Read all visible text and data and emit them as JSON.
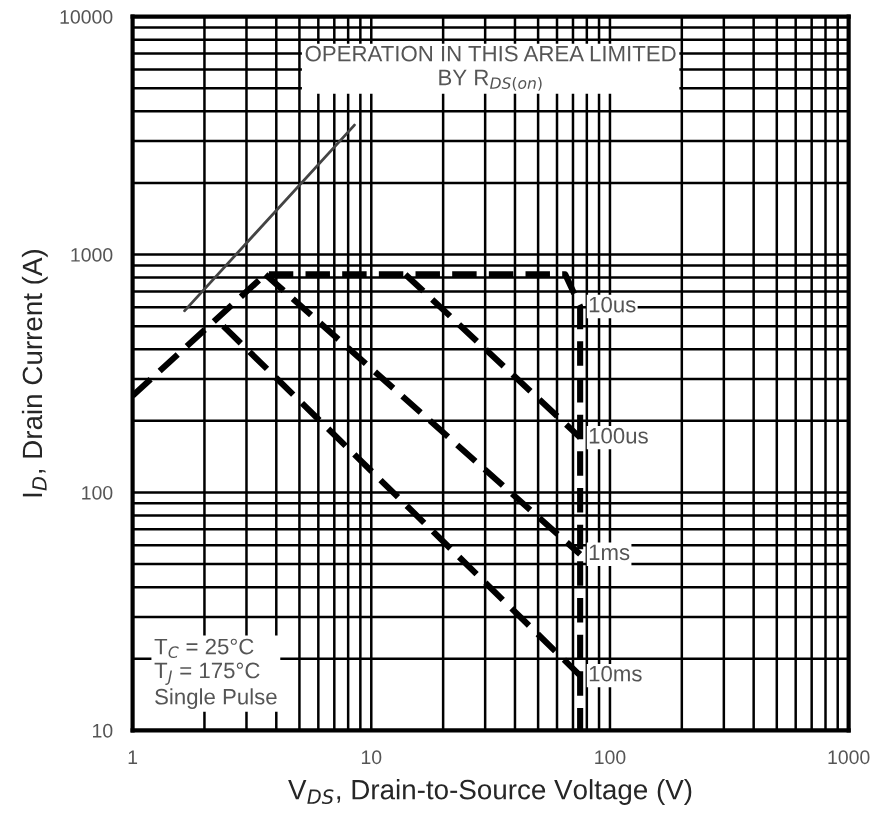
{
  "chart_data": {
    "type": "line",
    "xlabel": "V$_{DS}$, Drain-to-Source Voltage (V)",
    "ylabel": "I$_{D}$, Drain Current (A)",
    "log": "xy",
    "xlim": [
      1,
      1000
    ],
    "ylim": [
      10,
      10000
    ],
    "xticks": [
      1,
      10,
      100,
      1000
    ],
    "yticks": [
      10,
      100,
      1000,
      10000
    ],
    "grid": true,
    "series": [
      {
        "name": "10us",
        "color": "#000000",
        "line_style": "dashed",
        "x": [
          1,
          3.6,
          65,
          75,
          75
        ],
        "values": [
          255,
          825,
          825,
          605,
          10
        ]
      },
      {
        "name": "100us",
        "color": "#000000",
        "line_style": "dashed",
        "x": [
          13.9,
          75
        ],
        "values": [
          825,
          170
        ]
      },
      {
        "name": "1ms",
        "color": "#000000",
        "line_style": "dashed",
        "x": [
          3.6,
          75
        ],
        "values": [
          825,
          55
        ]
      },
      {
        "name": "10ms",
        "color": "#000000",
        "line_style": "dashed",
        "x": [
          2.4,
          75
        ],
        "values": [
          500,
          17
        ]
      },
      {
        "color": "#444444",
        "line_style": "solid",
        "x": [
          1.65,
          8.5
        ],
        "values": [
          580,
          3500
        ]
      }
    ],
    "annotations": [
      "OPERATION IN THIS AREA LIMITED\nBY R$_{DS(on)}$",
      "T$_{C}$ = 25°C\nT$_{J}$ = 175°C\nSingle Pulse"
    ]
  }
}
